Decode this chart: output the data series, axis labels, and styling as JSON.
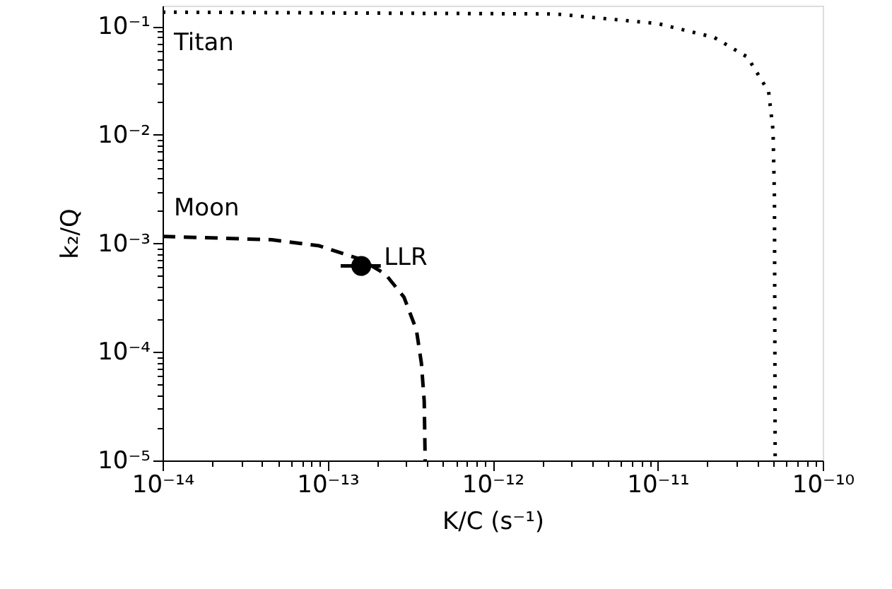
{
  "chart_data": {
    "type": "line",
    "xlabel": "K/C (s⁻¹)",
    "ylabel": "k₂/Q",
    "log": "xy",
    "grid": false,
    "xlim": [
      1e-14,
      1e-10
    ],
    "ylim": [
      1e-05,
      0.155
    ],
    "xticks": [
      {
        "value": 1e-14,
        "label": "10⁻¹⁴"
      },
      {
        "value": 2e-14,
        "label": null
      },
      {
        "value": 3e-14,
        "label": null
      },
      {
        "value": 4e-14,
        "label": null
      },
      {
        "value": 5e-14,
        "label": null
      },
      {
        "value": 6e-14,
        "label": null
      },
      {
        "value": 7e-14,
        "label": null
      },
      {
        "value": 8e-14,
        "label": null
      },
      {
        "value": 9e-14,
        "label": null
      },
      {
        "value": 1e-13,
        "label": "10⁻¹³"
      },
      {
        "value": 2e-13,
        "label": null
      },
      {
        "value": 3e-13,
        "label": null
      },
      {
        "value": 4e-13,
        "label": null
      },
      {
        "value": 5e-13,
        "label": null
      },
      {
        "value": 6e-13,
        "label": null
      },
      {
        "value": 7e-13,
        "label": null
      },
      {
        "value": 8e-13,
        "label": null
      },
      {
        "value": 9e-13,
        "label": null
      },
      {
        "value": 1e-12,
        "label": "10⁻¹²"
      },
      {
        "value": 2e-12,
        "label": null
      },
      {
        "value": 3e-12,
        "label": null
      },
      {
        "value": 4e-12,
        "label": null
      },
      {
        "value": 5e-12,
        "label": null
      },
      {
        "value": 6e-12,
        "label": null
      },
      {
        "value": 7e-12,
        "label": null
      },
      {
        "value": 8e-12,
        "label": null
      },
      {
        "value": 9e-12,
        "label": null
      },
      {
        "value": 1e-11,
        "label": "10⁻¹¹"
      },
      {
        "value": 2e-11,
        "label": null
      },
      {
        "value": 3e-11,
        "label": null
      },
      {
        "value": 4e-11,
        "label": null
      },
      {
        "value": 5e-11,
        "label": null
      },
      {
        "value": 6e-11,
        "label": null
      },
      {
        "value": 7e-11,
        "label": null
      },
      {
        "value": 8e-11,
        "label": null
      },
      {
        "value": 9e-11,
        "label": null
      },
      {
        "value": 1e-10,
        "label": "10⁻¹⁰"
      }
    ],
    "yticks": [
      {
        "value": 1e-05,
        "label": "10⁻⁵"
      },
      {
        "value": 2e-05,
        "label": null
      },
      {
        "value": 3e-05,
        "label": null
      },
      {
        "value": 4e-05,
        "label": null
      },
      {
        "value": 5e-05,
        "label": null
      },
      {
        "value": 6e-05,
        "label": null
      },
      {
        "value": 7e-05,
        "label": null
      },
      {
        "value": 8e-05,
        "label": null
      },
      {
        "value": 9e-05,
        "label": null
      },
      {
        "value": 0.0001,
        "label": "10⁻⁴"
      },
      {
        "value": 0.0002,
        "label": null
      },
      {
        "value": 0.0003,
        "label": null
      },
      {
        "value": 0.0004,
        "label": null
      },
      {
        "value": 0.0005,
        "label": null
      },
      {
        "value": 0.0006,
        "label": null
      },
      {
        "value": 0.0007,
        "label": null
      },
      {
        "value": 0.0008,
        "label": null
      },
      {
        "value": 0.0009,
        "label": null
      },
      {
        "value": 0.001,
        "label": "10⁻³"
      },
      {
        "value": 0.002,
        "label": null
      },
      {
        "value": 0.003,
        "label": null
      },
      {
        "value": 0.004,
        "label": null
      },
      {
        "value": 0.005,
        "label": null
      },
      {
        "value": 0.006,
        "label": null
      },
      {
        "value": 0.007,
        "label": null
      },
      {
        "value": 0.008,
        "label": null
      },
      {
        "value": 0.009,
        "label": null
      },
      {
        "value": 0.01,
        "label": "10⁻²"
      },
      {
        "value": 0.02,
        "label": null
      },
      {
        "value": 0.03,
        "label": null
      },
      {
        "value": 0.04,
        "label": null
      },
      {
        "value": 0.05,
        "label": null
      },
      {
        "value": 0.06,
        "label": null
      },
      {
        "value": 0.07,
        "label": null
      },
      {
        "value": 0.08,
        "label": null
      },
      {
        "value": 0.09,
        "label": null
      },
      {
        "value": 0.1,
        "label": "10⁻¹"
      }
    ],
    "series": [
      {
        "name": "Moon",
        "color": "#000000",
        "line_style": "dashed",
        "marker": "none",
        "x": [
          1e-14,
          4.6e-14,
          8.9e-14,
          1.6e-13,
          2.24e-13,
          2.9e-13,
          3.45e-13,
          3.7e-13,
          3.85e-13,
          3.9e-13
        ],
        "values": [
          0.00116,
          0.00108,
          0.00095,
          0.00071,
          0.00052,
          0.00032,
          0.00016,
          7.9e-05,
          3.5e-05,
          1e-05
        ]
      },
      {
        "name": "Titan",
        "color": "#000000",
        "line_style": "dotted",
        "marker": "none",
        "x": [
          1e-14,
          2.4e-12,
          1e-11,
          2.2e-11,
          3.5e-11,
          4.7e-11,
          5e-11,
          5.1e-11,
          5.15e-11
        ],
        "values": [
          0.135,
          0.13,
          0.106,
          0.079,
          0.052,
          0.025,
          0.011,
          0.0026,
          1e-05
        ]
      },
      {
        "type": "scatter",
        "name": "LLR",
        "color": "#000000",
        "marker": "circle",
        "x": [
          1.6e-13
        ],
        "values": [
          0.00062
        ],
        "xerrors": [
          [
            1.2e-13,
            2.1e-13
          ]
        ]
      }
    ]
  }
}
